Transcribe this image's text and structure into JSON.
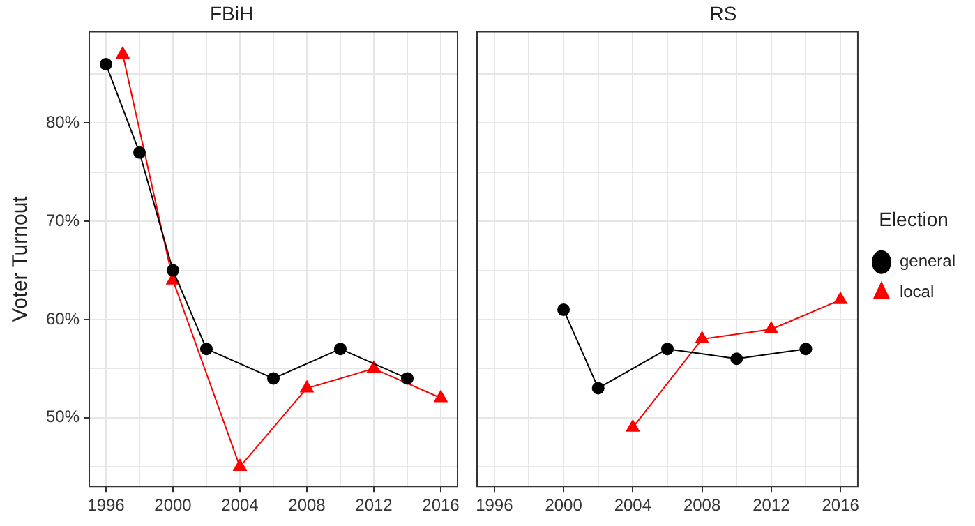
{
  "chart_data": [
    {
      "type": "line",
      "title": "FBiH",
      "ylabel": "Voter Turnout",
      "xlim": [
        1995,
        2017
      ],
      "ylim": [
        43,
        89.3
      ],
      "xticks": [
        1996,
        {
          "value": 1998,
          "label": null
        },
        2000,
        {
          "value": 2002,
          "label": null
        },
        2004,
        {
          "value": 2006,
          "label": null
        },
        2008,
        {
          "value": 2010,
          "label": null
        },
        2012,
        {
          "value": 2014,
          "label": null
        },
        2016
      ],
      "yticks": [
        {
          "value": 45,
          "label": null
        },
        {
          "value": 50,
          "label": "50%"
        },
        {
          "value": 55,
          "label": null
        },
        {
          "value": 60,
          "label": "60%"
        },
        {
          "value": 65,
          "label": null
        },
        {
          "value": 70,
          "label": "70%"
        },
        {
          "value": 75,
          "label": null
        },
        {
          "value": 80,
          "label": "80%"
        },
        {
          "value": 85,
          "label": null
        }
      ],
      "grid": true,
      "legend": false,
      "series": [
        {
          "color": "#000000",
          "marker": "circle",
          "x": [
            1996,
            1998,
            2000,
            2002,
            2006,
            2010,
            2014
          ],
          "values": [
            86,
            77,
            65,
            57,
            54,
            57,
            54
          ]
        },
        {
          "color": "#ff0000",
          "marker": "triangle",
          "x": [
            1997,
            2000,
            2004,
            2008,
            2012,
            2016
          ],
          "values": [
            87,
            64,
            45,
            53,
            55,
            52
          ]
        }
      ]
    },
    {
      "type": "line",
      "title": "RS",
      "legend_title": "Election",
      "xlim": [
        1995,
        2017
      ],
      "ylim": [
        43,
        89.3
      ],
      "tick_labels": "x",
      "xticks": [
        1996,
        {
          "value": 1998,
          "label": null
        },
        2000,
        {
          "value": 2002,
          "label": null
        },
        2004,
        {
          "value": 2006,
          "label": null
        },
        2008,
        {
          "value": 2010,
          "label": null
        },
        2012,
        {
          "value": 2014,
          "label": null
        },
        2016
      ],
      "yticks": [
        {
          "value": 45,
          "label": null
        },
        {
          "value": 50,
          "label": null
        },
        {
          "value": 55,
          "label": null
        },
        {
          "value": 60,
          "label": null
        },
        {
          "value": 65,
          "label": null
        },
        {
          "value": 70,
          "label": null
        },
        {
          "value": 75,
          "label": null
        },
        {
          "value": 80,
          "label": null
        },
        {
          "value": 85,
          "label": null
        }
      ],
      "grid": true,
      "legend": "right",
      "series": [
        {
          "name": "general",
          "color": "#000000",
          "marker": "circle",
          "x": [
            2000,
            2002,
            2006,
            2010,
            2014
          ],
          "values": [
            61,
            53,
            57,
            56,
            57
          ]
        },
        {
          "name": "local",
          "color": "#ff0000",
          "marker": "triangle",
          "x": [
            2004,
            2008,
            2012,
            2016
          ],
          "values": [
            49,
            58,
            59,
            62
          ]
        }
      ]
    }
  ]
}
